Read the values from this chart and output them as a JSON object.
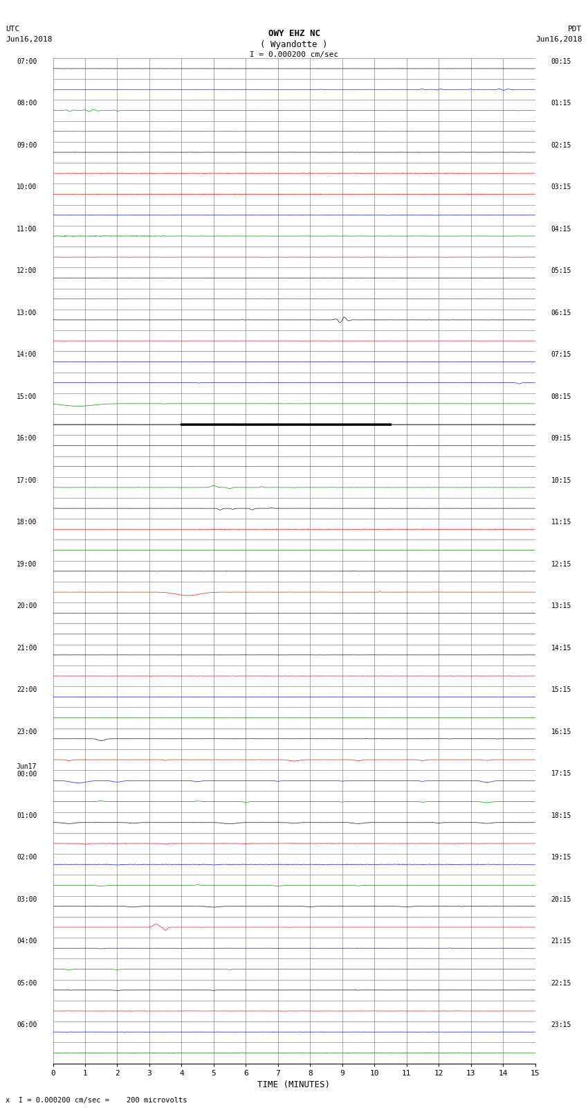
{
  "title_line1": "OWY EHZ NC",
  "title_line2": "( Wyandotte )",
  "scale_label": "I = 0.000200 cm/sec",
  "footer_label": "x  I = 0.000200 cm/sec =    200 microvolts",
  "utc_label": "UTC",
  "utc_date": "Jun16,2018",
  "pdt_label": "PDT",
  "pdt_date": "Jun16,2018",
  "xlabel": "TIME (MINUTES)",
  "bg_color": "#ffffff",
  "grid_color": "#888888",
  "trace_colors": [
    "black",
    "red",
    "blue",
    "green"
  ],
  "num_rows": 48,
  "minutes_per_row": 15,
  "figwidth": 8.5,
  "figheight": 16.13,
  "left_labels_utc": [
    "07:00",
    "",
    "08:00",
    "",
    "09:00",
    "",
    "10:00",
    "",
    "11:00",
    "",
    "12:00",
    "",
    "13:00",
    "",
    "14:00",
    "",
    "15:00",
    "",
    "16:00",
    "",
    "17:00",
    "",
    "18:00",
    "",
    "19:00",
    "",
    "20:00",
    "",
    "21:00",
    "",
    "22:00",
    "",
    "23:00",
    "",
    "Jun17",
    "",
    "01:00",
    "",
    "02:00",
    "",
    "03:00",
    "",
    "04:00",
    "",
    "05:00",
    "",
    "06:00",
    ""
  ],
  "left_labels_utc2": [
    "",
    "",
    "",
    "",
    "",
    "",
    "",
    "",
    "",
    "",
    "",
    "",
    "",
    "",
    "",
    "",
    "",
    "",
    "",
    "",
    "",
    "",
    "",
    "",
    "",
    "",
    "",
    "",
    "",
    "",
    "",
    "",
    "",
    "",
    "",
    "",
    "00:00",
    "",
    "",
    "",
    "",
    "",
    "",
    "",
    "",
    "",
    "",
    "",
    ""
  ],
  "right_labels_pdt": [
    "00:15",
    "",
    "01:15",
    "",
    "02:15",
    "",
    "03:15",
    "",
    "04:15",
    "",
    "05:15",
    "",
    "06:15",
    "",
    "07:15",
    "",
    "08:15",
    "",
    "09:15",
    "",
    "10:15",
    "",
    "11:15",
    "",
    "12:15",
    "",
    "13:15",
    "",
    "14:15",
    "",
    "15:15",
    "",
    "16:15",
    "",
    "17:15",
    "",
    "18:15",
    "",
    "19:15",
    "",
    "20:15",
    "",
    "21:15",
    "",
    "22:15",
    "",
    "23:15",
    ""
  ],
  "noise_amplitude": 0.006,
  "seed": 12345
}
